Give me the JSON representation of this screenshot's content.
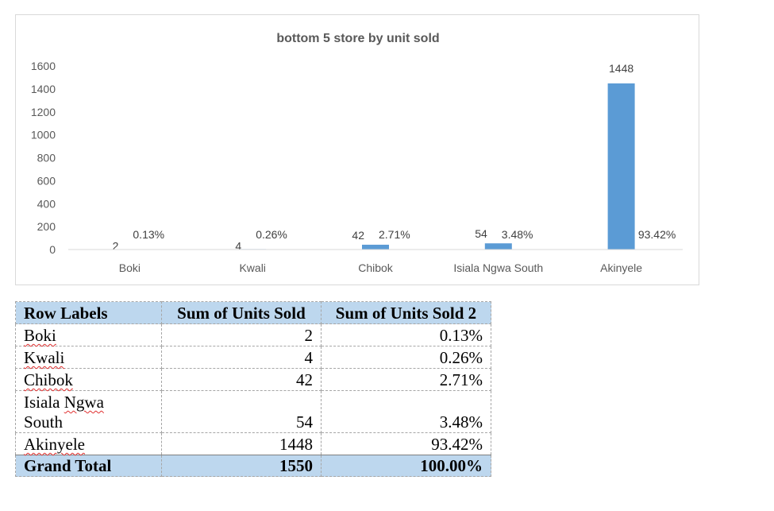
{
  "chart_data": {
    "type": "bar",
    "title": "bottom 5 store by unit sold",
    "categories": [
      "Boki",
      "Kwali",
      "Chibok",
      "Isiala Ngwa South",
      "Akinyele"
    ],
    "series": [
      {
        "values": [
          2,
          4,
          42,
          54,
          1448
        ]
      }
    ],
    "percent_labels": [
      "0.13%",
      "0.26%",
      "2.71%",
      "3.48%",
      "93.42%"
    ],
    "ylim": [
      0,
      1600
    ],
    "yticks": [
      0,
      200,
      400,
      600,
      800,
      1000,
      1200,
      1400,
      1600
    ],
    "bar_color": "#5b9bd5",
    "grid": false,
    "xlabel": "",
    "ylabel": ""
  },
  "table": {
    "headers": [
      "Row Labels",
      "Sum of Units Sold",
      "Sum of Units Sold 2"
    ],
    "rows": [
      {
        "label_line1": "Boki",
        "label_line2": "",
        "units": "2",
        "pct": "0.13%"
      },
      {
        "label_line1": "Kwali",
        "label_line2": "",
        "units": "4",
        "pct": "0.26%"
      },
      {
        "label_line1": "Chibok",
        "label_line2": "",
        "units": "42",
        "pct": "2.71%"
      },
      {
        "label_line1": "Isiala Ngwa",
        "label_line2": "South",
        "units": "54",
        "pct": "3.48%"
      },
      {
        "label_line1": "Akinyele",
        "label_line2": "",
        "units": "1448",
        "pct": "93.42%"
      }
    ],
    "total": {
      "label": "Grand Total",
      "units": "1550",
      "pct": "100.00%"
    },
    "header_color": "#bdd7ee"
  }
}
